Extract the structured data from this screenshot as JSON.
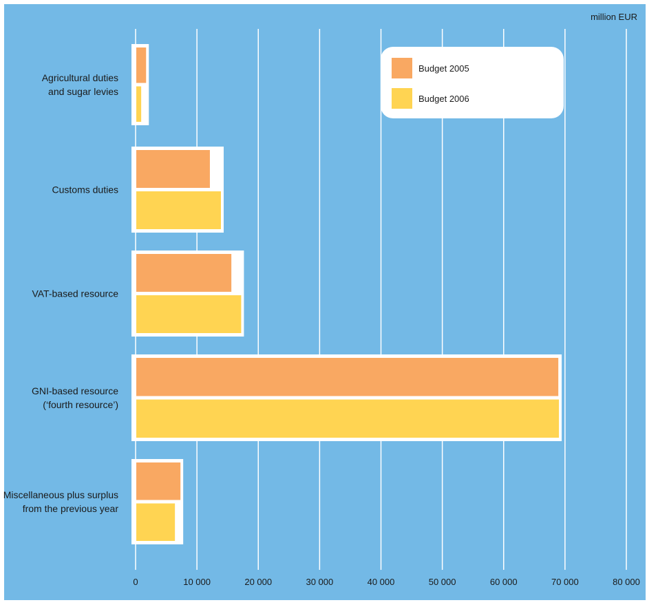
{
  "chart_data": {
    "type": "bar",
    "orientation": "horizontal",
    "unit_label": "million EUR",
    "title": "",
    "xlabel": "",
    "ylabel": "",
    "xlim": [
      0,
      80000
    ],
    "x_ticks": [
      {
        "value": 0,
        "label": "0"
      },
      {
        "value": 10000,
        "label": "10 000"
      },
      {
        "value": 20000,
        "label": "20 000"
      },
      {
        "value": 30000,
        "label": "30 000"
      },
      {
        "value": 40000,
        "label": "40 000"
      },
      {
        "value": 50000,
        "label": "50 000"
      },
      {
        "value": 60000,
        "label": "60 000"
      },
      {
        "value": 70000,
        "label": "70 000"
      },
      {
        "value": 80000,
        "label": "80 000"
      }
    ],
    "grid": true,
    "legend_position": "top-right",
    "categories": [
      [
        "Agricultural duties",
        "and sugar levies"
      ],
      [
        "Customs duties"
      ],
      [
        "VAT-based resource"
      ],
      [
        "GNI-based resource",
        "(‘fourth resource’)"
      ],
      [
        "Miscellaneous plus surplus",
        "from the previous year"
      ]
    ],
    "series": [
      {
        "name": "Budget 2005",
        "color": "#f9a862",
        "values": [
          1600,
          12000,
          15500,
          68800,
          7200
        ]
      },
      {
        "name": "Budget 2006",
        "color": "#ffd452",
        "values": [
          800,
          13800,
          17100,
          68900,
          6300
        ]
      }
    ],
    "colors": {
      "background": "#73b9e6",
      "gridline": "#ffffff",
      "bar_border": "#ffffff"
    }
  }
}
